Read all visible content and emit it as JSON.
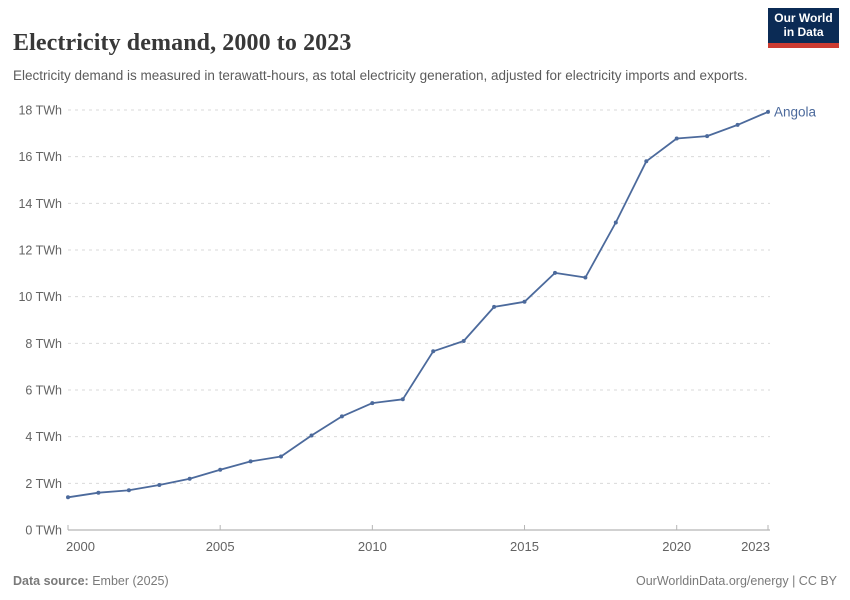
{
  "header": {
    "title": "Electricity demand, 2000 to 2023",
    "subtitle": "Electricity demand is measured in terawatt-hours, as total electricity generation, adjusted for electricity imports and exports.",
    "logo": {
      "line1": "Our World",
      "line2": "in Data"
    }
  },
  "footer": {
    "source_label": "Data source:",
    "source_value": " Ember (2025)",
    "credit": "OurWorldinData.org/energy | CC BY"
  },
  "colors": {
    "series": "#4c6a9c",
    "grid": "#dadada",
    "axis": "#a3a3a3",
    "tick": "#b5b5b5",
    "tick_label": "#636363",
    "logo_navy": "#0b2b55",
    "logo_red": "#cc3b31"
  },
  "chart_data": {
    "type": "line",
    "title": "Electricity demand, 2000 to 2023",
    "entity": "Angola",
    "unit": "TWh",
    "ylabel": "",
    "xlabel": "",
    "xlim": [
      2000,
      2023
    ],
    "ylim": [
      0,
      18
    ],
    "ytick_step": 2,
    "ytick_suffix": " TWh",
    "xticks": [
      2000,
      2005,
      2010,
      2015,
      2020,
      2023
    ],
    "grid": true,
    "legend_position": "end-of-line-label",
    "x": [
      2000,
      2001,
      2002,
      2003,
      2004,
      2005,
      2006,
      2007,
      2008,
      2009,
      2010,
      2011,
      2012,
      2013,
      2014,
      2015,
      2016,
      2017,
      2018,
      2019,
      2020,
      2021,
      2022,
      2023
    ],
    "values": [
      1.4,
      1.6,
      1.7,
      1.93,
      2.2,
      2.58,
      2.94,
      3.15,
      4.05,
      4.87,
      5.44,
      5.6,
      7.66,
      8.1,
      9.56,
      9.78,
      11.02,
      10.82,
      13.18,
      15.8,
      16.78,
      16.88,
      17.36,
      17.92
    ]
  }
}
